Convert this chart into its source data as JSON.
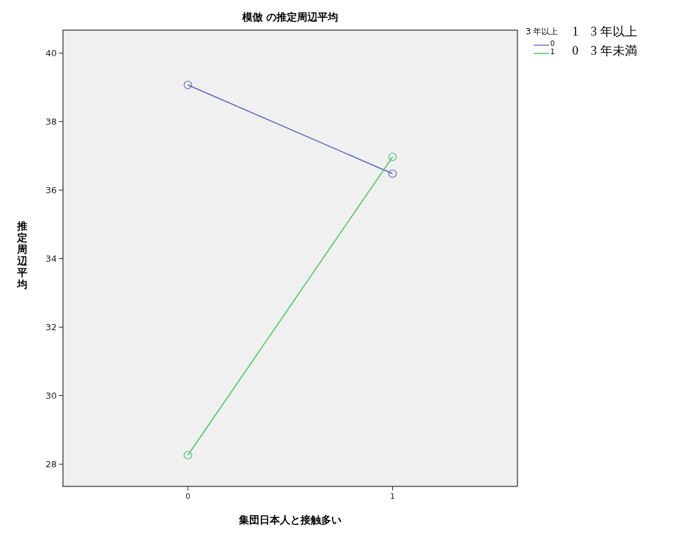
{
  "chart_data": {
    "type": "line",
    "title": "模倣 の推定周辺平均",
    "xlabel": "集団日本人と接触多い",
    "ylabel": "推定周辺平均",
    "legend_title": "3 年以上",
    "x": [
      0,
      1
    ],
    "series": [
      {
        "name": "0",
        "color": "#5a62b8",
        "values": [
          39.07,
          36.48
        ]
      },
      {
        "name": "1",
        "color": "#3dbf5a",
        "values": [
          28.26,
          36.97
        ]
      }
    ],
    "xlim": [
      -0.61,
      1.61
    ],
    "xticks": [
      0,
      1
    ],
    "ylim": [
      27.35,
      40.67
    ],
    "yticks": [
      28,
      30,
      32,
      34,
      36,
      38,
      40
    ],
    "marker": "circle",
    "legend": "top right",
    "grid": false,
    "annotations": [
      "1　3 年以上",
      "0　3 年未満"
    ]
  }
}
